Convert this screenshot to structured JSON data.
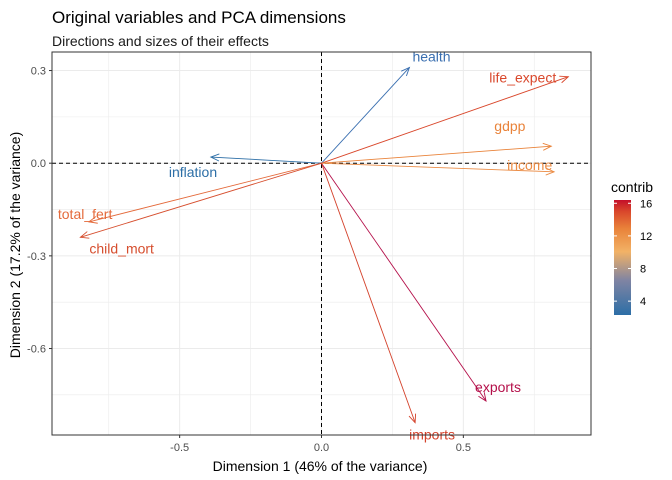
{
  "chart_data": {
    "type": "scatter",
    "title": "Original variables and PCA dimensions",
    "subtitle": "Directions and sizes of their effects",
    "xlabel": "Dimension 1 (46% of the variance)",
    "ylabel": "Dimension 2 (17.2% of the variance)",
    "xlim": [
      -0.95,
      0.95
    ],
    "ylim": [
      -0.88,
      0.36
    ],
    "x_ticks": [
      -0.5,
      0.0,
      0.5
    ],
    "x_tick_labels": [
      "-0.5",
      "0.0",
      "0.5"
    ],
    "y_ticks": [
      0.3,
      0.0,
      -0.3,
      -0.6
    ],
    "y_tick_labels": [
      "0.3",
      "0.0",
      "-0.3",
      "-0.6"
    ],
    "grid": true,
    "reference_lines": {
      "x": 0,
      "y": 0,
      "style": "dashed"
    },
    "vectors": [
      {
        "name": "health",
        "x": 0.31,
        "y": 0.31,
        "contrib": 3.5,
        "color": "#3a6fb0"
      },
      {
        "name": "life_expect",
        "x": 0.87,
        "y": 0.28,
        "contrib": 14.5,
        "color": "#d9472b"
      },
      {
        "name": "gdpp",
        "x": 0.81,
        "y": 0.055,
        "contrib": 11.5,
        "color": "#e9833a"
      },
      {
        "name": "income",
        "x": 0.82,
        "y": -0.028,
        "contrib": 11.0,
        "color": "#eb8c45"
      },
      {
        "name": "inflation",
        "x": -0.39,
        "y": 0.02,
        "contrib": 2.5,
        "color": "#2c6ea6"
      },
      {
        "name": "total_fert",
        "x": -0.82,
        "y": -0.19,
        "contrib": 13.0,
        "color": "#e46a3b"
      },
      {
        "name": "child_mort",
        "x": -0.85,
        "y": -0.24,
        "contrib": 14.5,
        "color": "#d64e2e"
      },
      {
        "name": "exports",
        "x": 0.58,
        "y": -0.77,
        "contrib": 16.0,
        "color": "#b4104a"
      },
      {
        "name": "imports",
        "x": 0.33,
        "y": -0.84,
        "contrib": 14.5,
        "color": "#d4422b"
      }
    ],
    "legend": {
      "title": "contrib",
      "position": "right",
      "ticks": [
        16,
        12,
        8,
        4
      ],
      "tick_labels": [
        "16",
        "12",
        "8",
        "4"
      ],
      "range": [
        2.3,
        16.4
      ],
      "colors": [
        "#2c6ea6",
        "#7f84a3",
        "#f2b266",
        "#e9833a",
        "#d9472b",
        "#c40f2a"
      ]
    }
  }
}
